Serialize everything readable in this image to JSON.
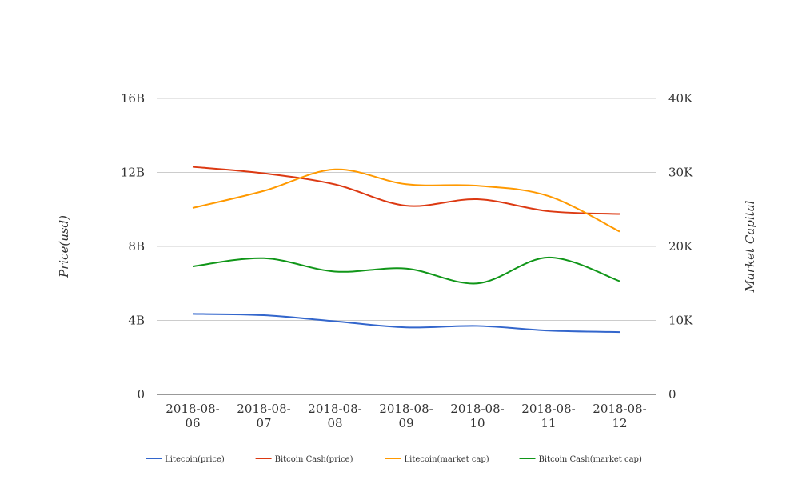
{
  "chart_data": {
    "type": "line",
    "title": "",
    "categories": [
      "2018-08-06",
      "2018-08-07",
      "2018-08-08",
      "2018-08-09",
      "2018-08-10",
      "2018-08-11",
      "2018-08-12"
    ],
    "category_label_lines": [
      [
        "2018-08-",
        "06"
      ],
      [
        "2018-08-",
        "07"
      ],
      [
        "2018-08-",
        "08"
      ],
      [
        "2018-08-",
        "09"
      ],
      [
        "2018-08-",
        "10"
      ],
      [
        "2018-08-",
        "11"
      ],
      [
        "2018-08-",
        "12"
      ]
    ],
    "left_axis": {
      "label": "Price(usd)",
      "min": 0,
      "max": 16000000000,
      "ticks": [
        0,
        4000000000,
        8000000000,
        12000000000,
        16000000000
      ],
      "tick_labels": [
        "0",
        "4B",
        "8B",
        "12B",
        "16B"
      ]
    },
    "right_axis": {
      "label": "Market Capital",
      "min": 0,
      "max": 40000,
      "ticks": [
        0,
        10000,
        20000,
        30000,
        40000
      ],
      "tick_labels": [
        "0",
        "10K",
        "20K",
        "30K",
        "40K"
      ]
    },
    "grid": true,
    "legend_position": "bottom",
    "series": [
      {
        "name": "Litecoin(price)",
        "color": "#3366cc",
        "axis": "left",
        "values": [
          4350000000,
          4280000000,
          3950000000,
          3620000000,
          3700000000,
          3450000000,
          3370000000
        ]
      },
      {
        "name": "Bitcoin Cash(price)",
        "color": "#dc3912",
        "axis": "left",
        "values": [
          12300000000,
          11950000000,
          11350000000,
          10200000000,
          10550000000,
          9900000000,
          9750000000
        ]
      },
      {
        "name": "Litecoin(market cap)",
        "color": "#ff9900",
        "axis": "right",
        "values": [
          25200,
          27500,
          30400,
          28400,
          28200,
          26800,
          22000
        ]
      },
      {
        "name": "Bitcoin Cash(market cap)",
        "color": "#109618",
        "axis": "right",
        "values": [
          17300,
          18400,
          16600,
          17000,
          15000,
          18500,
          15300
        ]
      }
    ]
  }
}
